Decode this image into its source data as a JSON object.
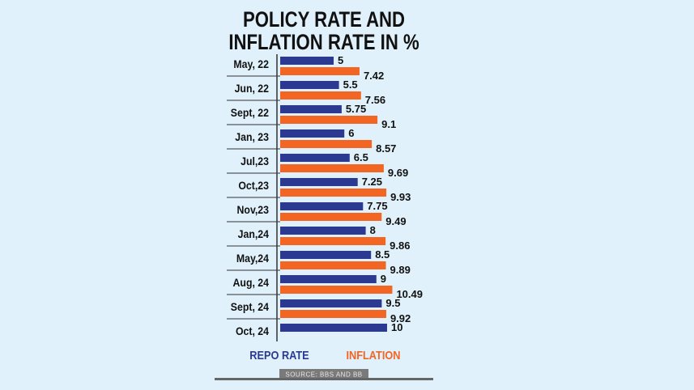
{
  "chart_data": {
    "type": "bar",
    "orientation": "horizontal",
    "title": [
      "POLICY RATE AND",
      "INFLATION RATE IN %"
    ],
    "categories": [
      "May, 22",
      "Jun, 22",
      "Sept, 22",
      "Jan, 23",
      "Jul,23",
      "Oct,23",
      "Nov,23",
      "Jan,24",
      "May,24",
      "Aug, 24",
      "Sept, 24",
      "Oct, 24"
    ],
    "series": [
      {
        "name": "REPO RATE",
        "color": "#2b3990",
        "values": [
          5,
          5.5,
          5.75,
          6,
          6.5,
          7.25,
          7.75,
          8,
          8.5,
          9,
          9.5,
          10
        ]
      },
      {
        "name": "INFLATION",
        "color": "#f26522",
        "values": [
          7.42,
          7.56,
          9.1,
          8.57,
          9.69,
          9.93,
          9.49,
          9.86,
          9.89,
          10.49,
          9.92,
          null
        ]
      }
    ],
    "value_labels": {
      "REPO RATE": [
        "5",
        "5.5",
        "5.75",
        "6",
        "6.5",
        "7.25",
        "7.75",
        "8",
        "8.5",
        "9",
        "9.5",
        "10"
      ],
      "INFLATION": [
        "7.42",
        "7.56",
        "9.1",
        "8.57",
        "9.69",
        "9.93",
        "9.49",
        "9.86",
        "9.89",
        "10.49",
        "9.92",
        ""
      ]
    },
    "legend_placement": "bottom",
    "grid": false,
    "source": "SOURCE: BBS AND BB"
  }
}
